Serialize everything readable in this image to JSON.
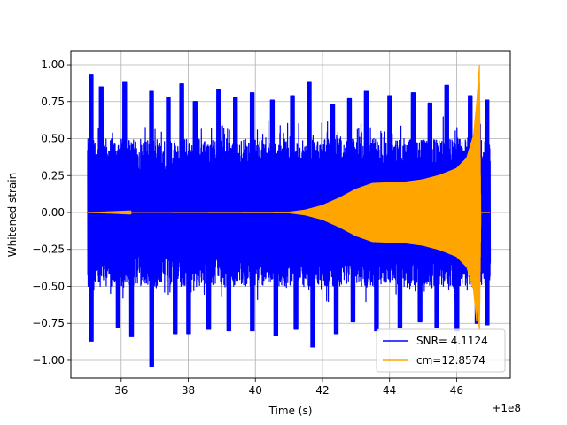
{
  "chart_data": {
    "type": "line",
    "xlabel": "Time (s)",
    "ylabel": "Whitened strain",
    "x_offset_label": "+1e8",
    "xlim": [
      34.5,
      47.6
    ],
    "ylim": [
      -1.12,
      1.09
    ],
    "x_ticks": [
      36,
      38,
      40,
      42,
      44,
      46
    ],
    "y_ticks": [
      -1.0,
      -0.75,
      -0.5,
      -0.25,
      0.0,
      0.25,
      0.5,
      0.75,
      1.0
    ],
    "grid": true,
    "legend_position": "lower right",
    "series": [
      {
        "name": "SNR= 4.1124",
        "color": "#0000ff",
        "description_values": {
          "x_start": 35.0,
          "x_end": 47.0,
          "typical_amplitude": 0.5,
          "max": 1.0,
          "min": -1.04
        },
        "peaks_upper": [
          [
            35.1,
            0.93
          ],
          [
            35.4,
            0.85
          ],
          [
            36.1,
            0.88
          ],
          [
            36.9,
            0.82
          ],
          [
            37.4,
            0.78
          ],
          [
            37.8,
            0.87
          ],
          [
            38.2,
            0.75
          ],
          [
            38.9,
            0.83
          ],
          [
            39.4,
            0.78
          ],
          [
            39.9,
            0.81
          ],
          [
            40.5,
            0.76
          ],
          [
            41.1,
            0.79
          ],
          [
            41.6,
            0.88
          ],
          [
            42.3,
            0.73
          ],
          [
            42.8,
            0.77
          ],
          [
            43.3,
            0.82
          ],
          [
            44.0,
            0.79
          ],
          [
            44.7,
            0.81
          ],
          [
            45.2,
            0.74
          ],
          [
            45.7,
            0.86
          ],
          [
            46.4,
            0.79
          ],
          [
            46.9,
            0.76
          ]
        ],
        "peaks_lower": [
          [
            35.1,
            -0.87
          ],
          [
            35.9,
            -0.78
          ],
          [
            36.3,
            -0.84
          ],
          [
            36.9,
            -1.04
          ],
          [
            37.6,
            -0.82
          ],
          [
            38.0,
            -0.82
          ],
          [
            38.6,
            -0.79
          ],
          [
            39.2,
            -0.8
          ],
          [
            39.9,
            -0.8
          ],
          [
            40.6,
            -0.83
          ],
          [
            41.2,
            -0.79
          ],
          [
            41.7,
            -0.91
          ],
          [
            42.4,
            -0.82
          ],
          [
            42.9,
            -0.74
          ],
          [
            43.6,
            -0.8
          ],
          [
            44.3,
            -0.78
          ],
          [
            44.9,
            -0.74
          ],
          [
            45.4,
            -0.78
          ],
          [
            46.0,
            -0.8
          ],
          [
            46.6,
            -0.75
          ],
          [
            46.9,
            -0.76
          ]
        ]
      },
      {
        "name": "cm=12.8574",
        "color": "#ffa500",
        "envelope": [
          [
            35.0,
            0.0
          ],
          [
            41.0,
            0.005
          ],
          [
            41.5,
            0.02
          ],
          [
            42.0,
            0.05
          ],
          [
            42.5,
            0.1
          ],
          [
            43.0,
            0.16
          ],
          [
            43.5,
            0.2
          ],
          [
            44.0,
            0.205
          ],
          [
            44.5,
            0.21
          ],
          [
            45.0,
            0.225
          ],
          [
            45.5,
            0.255
          ],
          [
            46.0,
            0.3
          ],
          [
            46.3,
            0.37
          ],
          [
            46.5,
            0.52
          ],
          [
            46.6,
            0.75
          ],
          [
            46.68,
            1.0
          ],
          [
            46.72,
            0.0
          ],
          [
            47.0,
            0.0
          ]
        ]
      }
    ]
  }
}
